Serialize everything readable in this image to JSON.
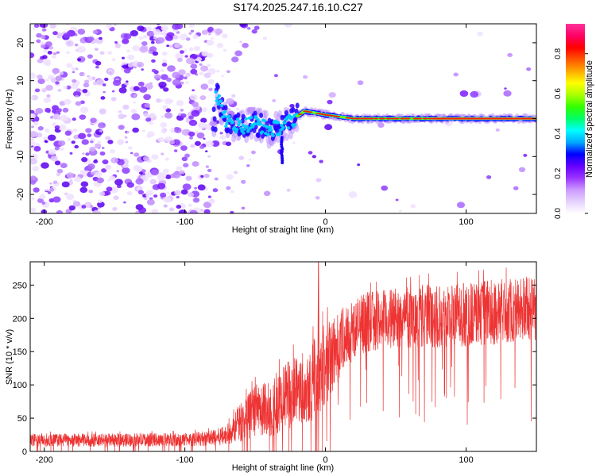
{
  "title": "S174.2025.247.16.10.C27",
  "chart_data": [
    {
      "type": "heatmap",
      "name": "spectrogram",
      "xlabel": "Height of straight line (km)",
      "ylabel": "Frequency (Hz)",
      "xlim": [
        -210,
        150
      ],
      "ylim": [
        -25,
        25
      ],
      "xticks": [
        -200,
        -100,
        0,
        100
      ],
      "yticks": [
        -20,
        -10,
        0,
        10,
        20
      ],
      "colorbar": {
        "label": "Normalized spectral amplitude",
        "range": [
          0,
          0.95
        ],
        "ticks": [
          0,
          0.2,
          0.4,
          0.6,
          0.8
        ],
        "colors": [
          "#ffffff",
          "#e6d2ff",
          "#cc99ff",
          "#9933ff",
          "#6600ff",
          "#0000ff",
          "#00aaff",
          "#00ffff",
          "#00ff66",
          "#33ff00",
          "#aaff00",
          "#ffff00",
          "#ffaa00",
          "#ff5500",
          "#ff0000",
          "#ff0066",
          "#ff3399"
        ]
      },
      "ridge": [
        {
          "x": -78,
          "y": 7
        },
        {
          "x": -70,
          "y": -1
        },
        {
          "x": -60,
          "y": -2
        },
        {
          "x": -50,
          "y": -1
        },
        {
          "x": -40,
          "y": -3
        },
        {
          "x": -30,
          "y": -2
        },
        {
          "x": -22,
          "y": 0
        },
        {
          "x": -15,
          "y": 2
        },
        {
          "x": 0,
          "y": 1
        },
        {
          "x": 20,
          "y": 0
        },
        {
          "x": 40,
          "y": 0
        },
        {
          "x": 60,
          "y": 0
        },
        {
          "x": 80,
          "y": 0
        },
        {
          "x": 100,
          "y": 0
        },
        {
          "x": 120,
          "y": 0
        },
        {
          "x": 150,
          "y": 0
        }
      ]
    },
    {
      "type": "line",
      "name": "snr",
      "xlabel": "Height of straight line (km)",
      "ylabel": "SNR (10 * v/v)",
      "xlim": [
        -210,
        150
      ],
      "ylim": [
        0,
        285
      ],
      "xticks": [
        -200,
        -100,
        0,
        100
      ],
      "yticks": [
        0,
        50,
        100,
        150,
        200,
        250
      ],
      "color": "#ee3333",
      "envelope_x": [
        -210,
        -150,
        -100,
        -80,
        -70,
        -60,
        -50,
        -40,
        -30,
        -20,
        -10,
        -5,
        0,
        10,
        20,
        30,
        50,
        80,
        100,
        120,
        150
      ],
      "envelope_mean": [
        17,
        17,
        18,
        20,
        25,
        45,
        60,
        65,
        80,
        95,
        105,
        120,
        130,
        160,
        185,
        195,
        200,
        205,
        205,
        210,
        215
      ],
      "envelope_amp": [
        10,
        10,
        10,
        12,
        15,
        30,
        40,
        45,
        50,
        55,
        60,
        65,
        65,
        55,
        45,
        45,
        45,
        50,
        50,
        50,
        50
      ],
      "spike": {
        "x": -5,
        "y": 285
      }
    }
  ]
}
